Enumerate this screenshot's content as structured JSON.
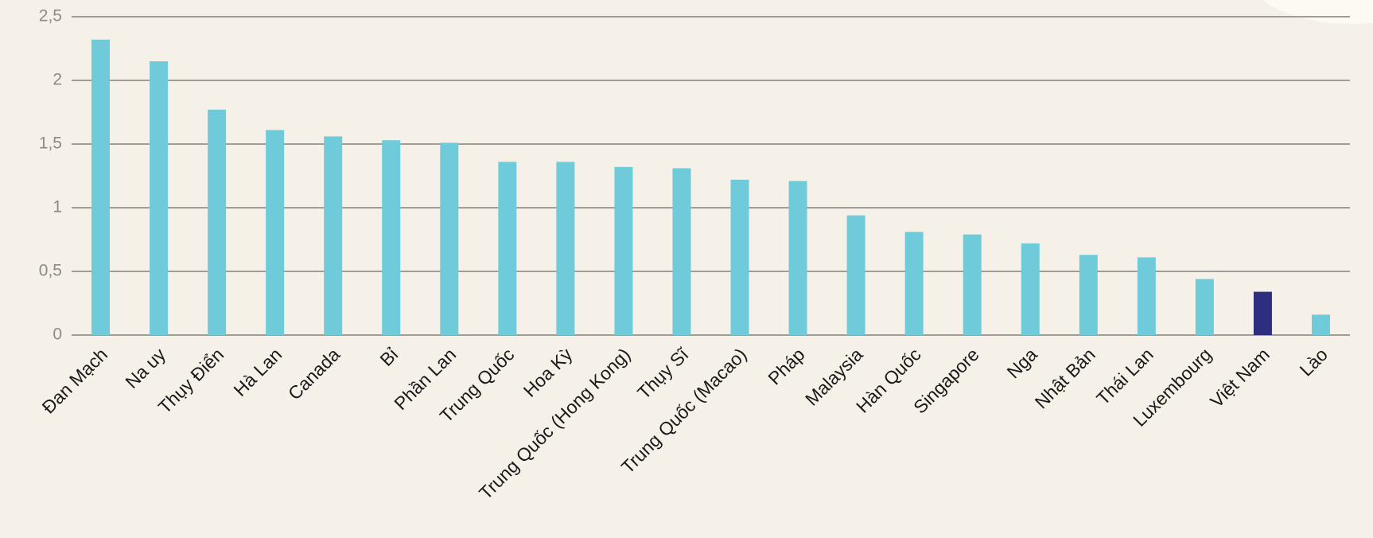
{
  "chart_data": {
    "type": "bar",
    "categories": [
      "Đan Mạch",
      "Na uy",
      "Thụy Điển",
      "Hà Lan",
      "Canada",
      "Bỉ",
      "Phần Lan",
      "Trung Quốc",
      "Hoa Kỳ",
      "Trung Quốc (Hong Kong)",
      "Thụy Sĩ",
      "Trung Quốc (Macao)",
      "Pháp",
      "Malaysia",
      "Hàn Quốc",
      "Singapore",
      "Nga",
      "Nhật Bản",
      "Thái Lan",
      "Luxembourg",
      "Việt Nam",
      "Lào"
    ],
    "values": [
      2.32,
      2.15,
      1.77,
      1.61,
      1.56,
      1.53,
      1.51,
      1.36,
      1.36,
      1.32,
      1.31,
      1.22,
      1.21,
      0.94,
      0.81,
      0.79,
      0.72,
      0.63,
      0.61,
      0.44,
      0.34,
      0.16
    ],
    "colors": [
      "#6fcbd9",
      "#6fcbd9",
      "#6fcbd9",
      "#6fcbd9",
      "#6fcbd9",
      "#6fcbd9",
      "#6fcbd9",
      "#6fcbd9",
      "#6fcbd9",
      "#6fcbd9",
      "#6fcbd9",
      "#6fcbd9",
      "#6fcbd9",
      "#6fcbd9",
      "#6fcbd9",
      "#6fcbd9",
      "#6fcbd9",
      "#6fcbd9",
      "#6fcbd9",
      "#6fcbd9",
      "#2e2e7f",
      "#6fcbd9"
    ],
    "ylim": [
      0,
      2.5
    ],
    "yticks": [
      0,
      {
        "value": 0.5,
        "label": "0,5"
      },
      1,
      {
        "value": 1.5,
        "label": "1,5"
      },
      2,
      {
        "value": 2.5,
        "label": "2,5"
      }
    ],
    "grid": true
  }
}
